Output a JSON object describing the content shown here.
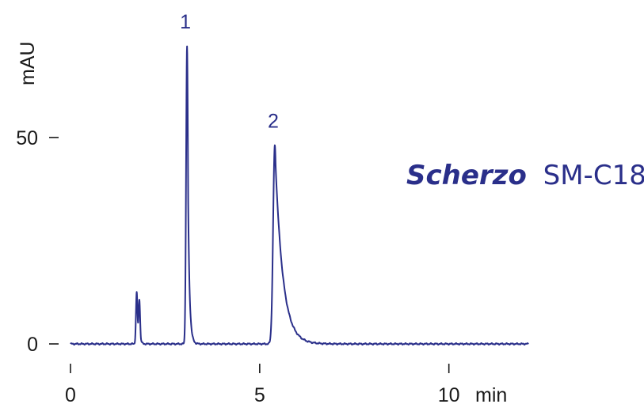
{
  "chart_data": {
    "type": "line",
    "y_axis_label": "mAU",
    "x_unit_label": "min",
    "y_ticks": [
      {
        "value": 0,
        "label": "0"
      },
      {
        "value": 50,
        "label": "50"
      }
    ],
    "x_ticks": [
      {
        "value": 0,
        "label": "0"
      },
      {
        "value": 5,
        "label": "5"
      },
      {
        "value": 10,
        "label": "10"
      }
    ],
    "xlim": [
      0,
      12.1
    ],
    "ylim": [
      0,
      72
    ],
    "series": [
      {
        "color": "#2a2f8a",
        "baseline": 0,
        "peaks": [
          {
            "x": 1.75,
            "height": 12.5,
            "width": 0.02,
            "tail": 0.02
          },
          {
            "x": 1.82,
            "height": 10.5,
            "width": 0.02,
            "tail": 0.02
          },
          {
            "x": 3.08,
            "height": 72.0,
            "width": 0.025,
            "tail": 0.04
          },
          {
            "x": 5.4,
            "height": 48.0,
            "width": 0.045,
            "tail": 0.2
          }
        ]
      }
    ],
    "peak_labels": [
      {
        "text": "1",
        "x": 3.08,
        "y": 72.0
      },
      {
        "text": "2",
        "x": 5.4,
        "y": 48.0
      }
    ],
    "grid": false,
    "legend": "none"
  },
  "annotation": {
    "brand": "Scherzo",
    "model": "SM-C18",
    "color": "#2a2f8a"
  }
}
